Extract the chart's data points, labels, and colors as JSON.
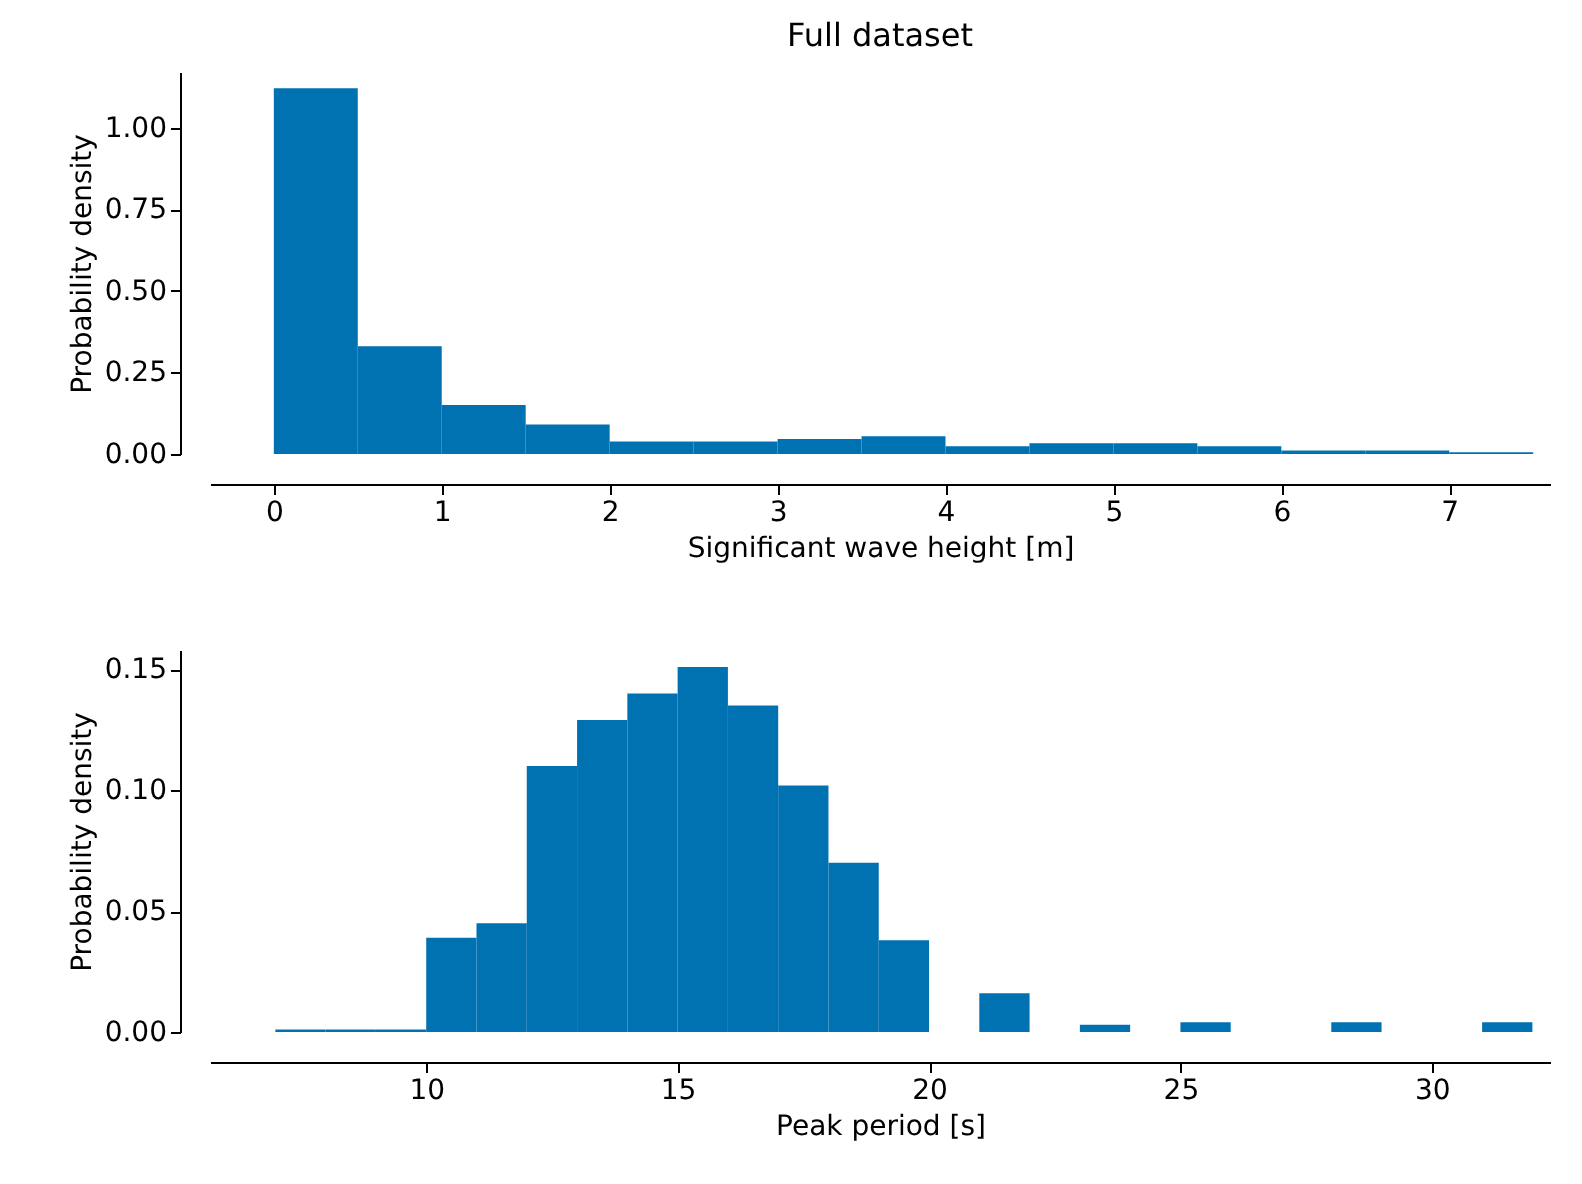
{
  "chart_data": [
    {
      "type": "histogram",
      "title": "Full dataset",
      "xlabel": "Significant wave height [m]",
      "ylabel": "Probability density",
      "color": "#0072b2",
      "bins": [
        0,
        0.5,
        1,
        1.5,
        2,
        2.5,
        3,
        3.5,
        4,
        4.5,
        5,
        5.5,
        6,
        6.5,
        7,
        7.5
      ],
      "values": [
        1.12,
        0.33,
        0.15,
        0.09,
        0.038,
        0.038,
        0.046,
        0.054,
        0.024,
        0.033,
        0.033,
        0.024,
        0.011,
        0.011,
        0.005
      ],
      "xlim": [
        -0.38,
        7.6
      ],
      "xticks": [
        0,
        1,
        2,
        3,
        4,
        5,
        6,
        7
      ],
      "ylim": [
        0,
        1.17
      ],
      "yticks": [
        {
          "value": 0,
          "label": "0.00"
        },
        {
          "value": 0.25,
          "label": "0.25"
        },
        {
          "value": 0.5,
          "label": "0.50"
        },
        {
          "value": 0.75,
          "label": "0.75"
        },
        {
          "value": 1,
          "label": "1.00"
        }
      ]
    },
    {
      "type": "histogram",
      "xlabel": "Peak period [s]",
      "ylabel": "Probability density",
      "color": "#0072b2",
      "bins": [
        7,
        8,
        9,
        10,
        11,
        12,
        13,
        14,
        15,
        16,
        17,
        18,
        19,
        20,
        21,
        22,
        23,
        24,
        25,
        26,
        27,
        28,
        29,
        30,
        31,
        32
      ],
      "values": [
        0.001,
        0.001,
        0.001,
        0.039,
        0.045,
        0.11,
        0.129,
        0.14,
        0.151,
        0.135,
        0.102,
        0.07,
        0.038,
        0,
        0.016,
        0,
        0.003,
        0,
        0.004,
        0,
        0,
        0.004,
        0,
        0,
        0.004
      ],
      "xlim": [
        5.7,
        32.35
      ],
      "xticks": [
        10,
        15,
        20,
        25,
        30
      ],
      "ylim": [
        0,
        0.158
      ],
      "yticks": [
        {
          "value": 0,
          "label": "0.00"
        },
        {
          "value": 0.05,
          "label": "0.05"
        },
        {
          "value": 0.1,
          "label": "0.10"
        },
        {
          "value": 0.15,
          "label": "0.15"
        }
      ]
    }
  ]
}
